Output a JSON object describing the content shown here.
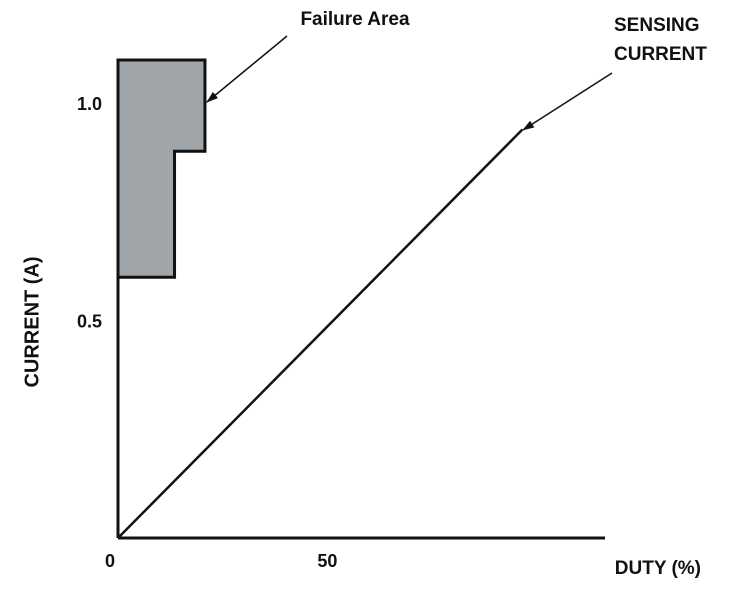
{
  "chart_data": {
    "type": "line",
    "xlabel": "DUTY (%)",
    "ylabel": "CURRENT (A)",
    "xlim": [
      0,
      112
    ],
    "ylim": [
      0,
      1.1
    ],
    "xticks": [
      0,
      50
    ],
    "yticks": [
      0.5,
      {
        "value": 1,
        "label": "1.0"
      }
    ],
    "series": [
      {
        "x": [
          0,
          93
        ],
        "values": [
          0,
          0.94
        ],
        "color": "#111111"
      }
    ],
    "failure_area": {
      "label": "Failure Area",
      "x": [
        0,
        13,
        13,
        20,
        20,
        0
      ],
      "y": [
        0.6,
        0.6,
        0.89,
        0.89,
        1.1,
        1.1
      ],
      "color": "#a0a5aa"
    },
    "annotations": [
      {
        "lines": [
          "SENSING",
          "CURRENT"
        ]
      }
    ]
  }
}
